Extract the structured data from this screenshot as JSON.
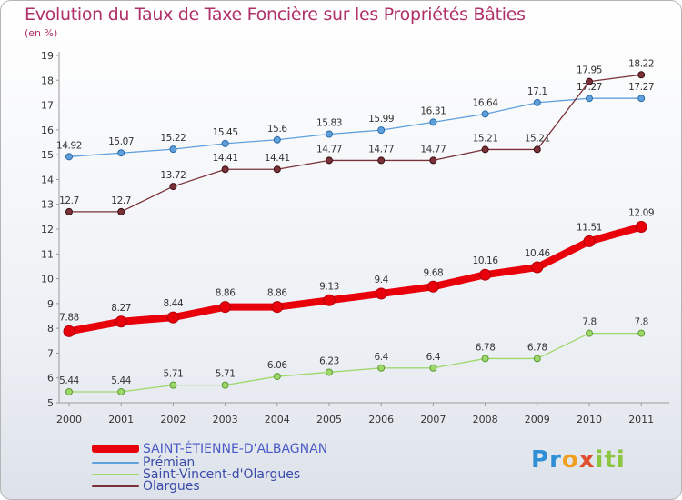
{
  "chart_data": {
    "type": "line",
    "title": "Evolution du Taux de Taxe Foncière sur les Propriétés Bâties",
    "subtitle": "(en %)",
    "xlabel": "",
    "ylabel": "",
    "categories": [
      "2000",
      "2001",
      "2002",
      "2003",
      "2004",
      "2005",
      "2006",
      "2007",
      "2008",
      "2009",
      "2010",
      "2011"
    ],
    "ylim": [
      5,
      19
    ],
    "yticks": [
      5,
      6,
      7,
      8,
      9,
      10,
      11,
      12,
      13,
      14,
      15,
      16,
      17,
      18,
      19
    ],
    "grid": false,
    "series": [
      {
        "name": "SAINT-ÉTIENNE-D'ALBAGNAN",
        "color": "#e8000b",
        "labels": [
          "7.88",
          "8.27",
          "8.44",
          "8.86",
          "8.86",
          "9.13",
          "9.4",
          "9.68",
          "10.16",
          "10.46",
          "11.51",
          "12.09"
        ],
        "values": [
          7.88,
          8.27,
          8.44,
          8.86,
          8.86,
          9.13,
          9.4,
          9.68,
          10.16,
          10.46,
          11.51,
          12.09
        ]
      },
      {
        "name": "Prémian",
        "color": "#5fa0dc",
        "labels": [
          "14.92",
          "15.07",
          "15.22",
          "15.45",
          "15.6",
          "15.83",
          "15.99",
          "16.31",
          "16.64",
          "17.1",
          "17.27",
          "17.27"
        ],
        "values": [
          14.92,
          15.07,
          15.22,
          15.45,
          15.6,
          15.83,
          15.99,
          16.31,
          16.64,
          17.1,
          17.27,
          17.27
        ]
      },
      {
        "name": "Saint-Vincent-d'Olargues",
        "color": "#9ed86b",
        "labels": [
          "5.44",
          "5.44",
          "5.71",
          "5.71",
          "6.06",
          "6.23",
          "6.4",
          "6.4",
          "6.78",
          "6.78",
          "7.8",
          "7.8"
        ],
        "values": [
          5.44,
          5.44,
          5.71,
          5.71,
          6.06,
          6.23,
          6.4,
          6.4,
          6.78,
          6.78,
          7.8,
          7.8
        ]
      },
      {
        "name": "Olargues",
        "color": "#7a3238",
        "labels": [
          "12.7",
          "12.7",
          "13.72",
          "14.41",
          "14.41",
          "14.77",
          "14.77",
          "14.77",
          "15.21",
          "15.21",
          "17.95",
          "18.22"
        ],
        "values": [
          12.7,
          12.7,
          13.72,
          14.41,
          14.41,
          14.77,
          14.77,
          14.77,
          15.21,
          15.21,
          17.95,
          18.22
        ]
      }
    ]
  },
  "logo": {
    "letters": [
      "P",
      "r",
      "o",
      "x",
      "i",
      "t",
      "i"
    ],
    "colors": [
      "#2f8fd6",
      "#2f8fd6",
      "#f0a020",
      "#e05030",
      "#8cc63f",
      "#8cc63f",
      "#8cc63f"
    ]
  }
}
